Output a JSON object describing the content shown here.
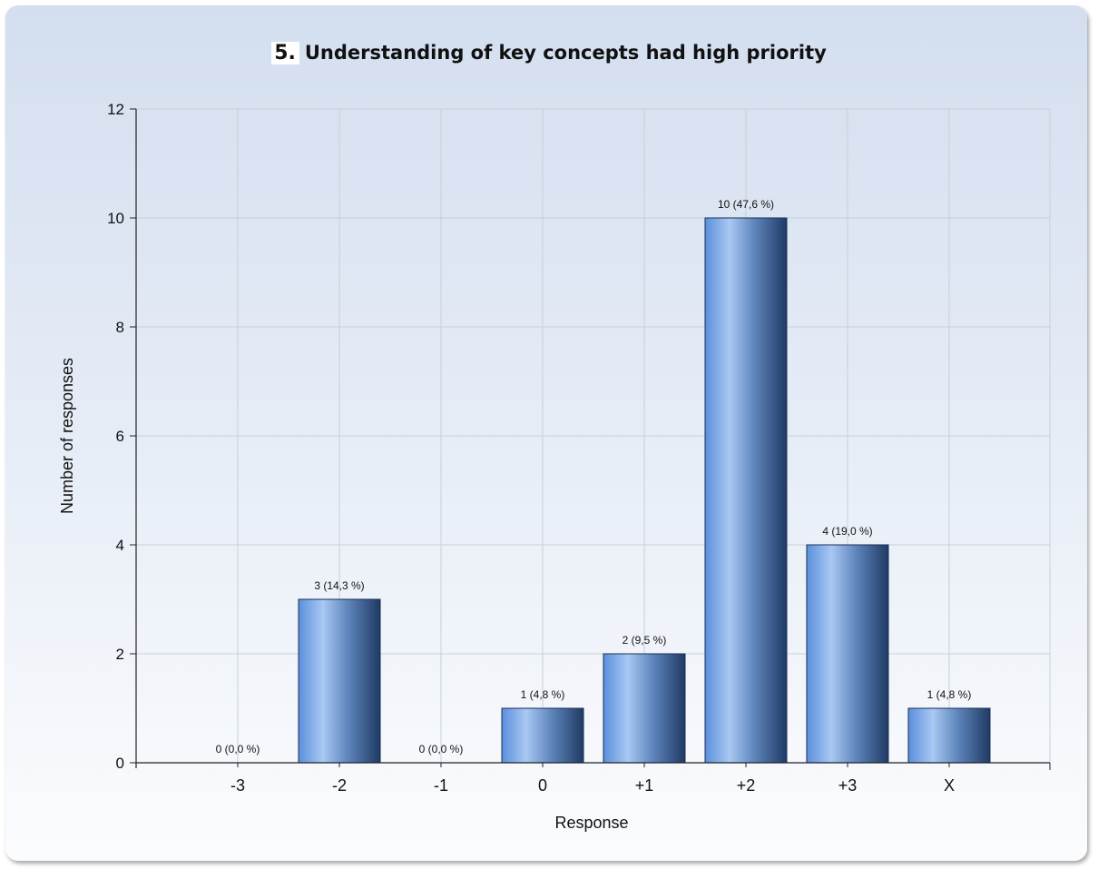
{
  "question_number": "5.",
  "chart_data": {
    "type": "bar",
    "title": "Understanding of key concepts had high priority",
    "xlabel": "Response",
    "ylabel": "Number of responses",
    "categories": [
      "-3",
      "-2",
      "-1",
      "0",
      "+1",
      "+2",
      "+3",
      "X"
    ],
    "values": [
      0,
      3,
      0,
      1,
      2,
      10,
      4,
      1
    ],
    "data_labels": [
      "0 (0,0 %)",
      "3 (14,3 %)",
      "0 (0,0 %)",
      "1 (4,8 %)",
      "2 (9,5 %)",
      "10 (47,6 %)",
      "4 (19,0 %)",
      "1 (4,8 %)"
    ],
    "ylim": [
      0,
      12
    ],
    "yticks": [
      0,
      2,
      4,
      6,
      8,
      10,
      12
    ],
    "grid": true,
    "legend": "none",
    "colors": {
      "bar_light": "#a9c8f3",
      "bar_mid": "#6f9fdc",
      "bar_dark": "#1f3a64",
      "grid": "#c9cfd8",
      "axis": "#222222"
    }
  }
}
